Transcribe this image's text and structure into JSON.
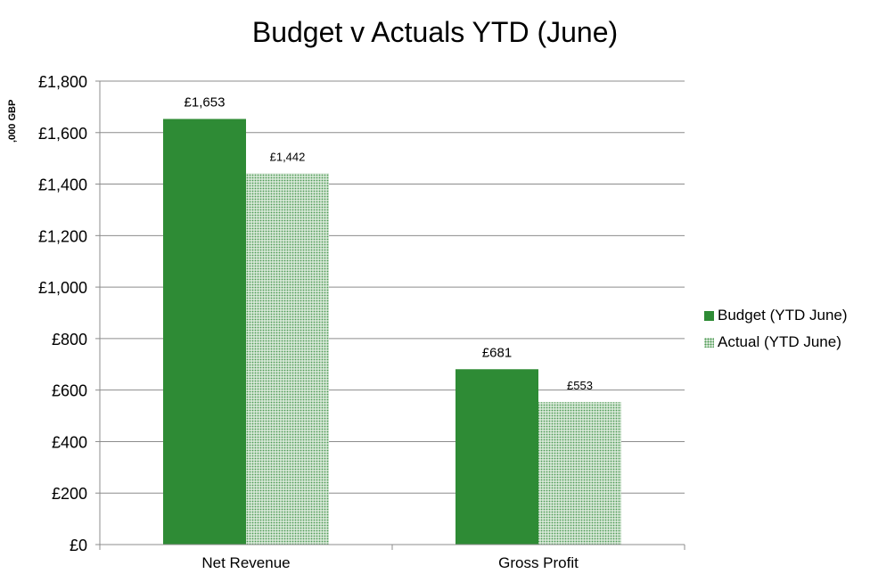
{
  "chart_data": {
    "type": "bar",
    "title": "Budget v Actuals YTD (June)",
    "ylabel": ",000 GBP",
    "xlabel": "",
    "categories": [
      "Net Revenue",
      "Gross Profit"
    ],
    "series": [
      {
        "name": "Budget (YTD June)",
        "values": [
          1653,
          681
        ],
        "labels": [
          "£1,653",
          "£681"
        ],
        "color": "#2e8b35",
        "pattern": "solid"
      },
      {
        "name": "Actual (YTD June)",
        "values": [
          1442,
          553
        ],
        "labels": [
          "£1,442",
          "£553"
        ],
        "color": "#4e9a55",
        "pattern": "dotted"
      }
    ],
    "ylim": [
      0,
      1800
    ],
    "yticks": [
      0,
      200,
      400,
      600,
      800,
      1000,
      1200,
      1400,
      1600,
      1800
    ],
    "ytick_labels": [
      "£0",
      "£200",
      "£400",
      "£600",
      "£800",
      "£1,000",
      "£1,200",
      "£1,400",
      "£1,600",
      "£1,800"
    ],
    "grid": true,
    "legend_position": "right"
  }
}
